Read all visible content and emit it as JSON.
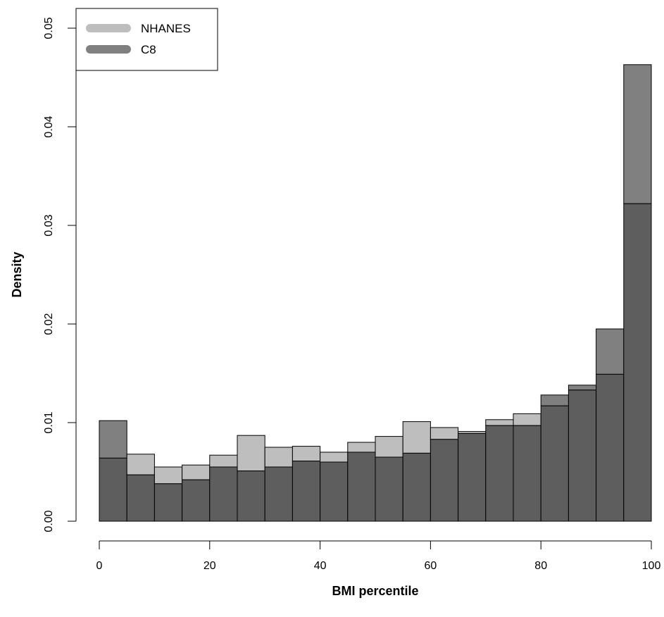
{
  "chart_data": {
    "type": "bar",
    "title": "",
    "xlabel": "BMI percentile",
    "ylabel": "Density",
    "xlim": [
      0,
      100
    ],
    "ylim": [
      0,
      0.05
    ],
    "x_ticks": [
      "0",
      "20",
      "40",
      "60",
      "80",
      "100"
    ],
    "y_ticks": [
      "0.00",
      "0.01",
      "0.02",
      "0.03",
      "0.04",
      "0.05"
    ],
    "bin_edges": [
      0,
      5,
      10,
      15,
      20,
      25,
      30,
      35,
      40,
      45,
      50,
      55,
      60,
      65,
      70,
      75,
      80,
      85,
      90,
      95,
      100
    ],
    "series": [
      {
        "name": "NHANES",
        "color": "#bebebe",
        "values": [
          0.0064,
          0.0068,
          0.0055,
          0.0057,
          0.0067,
          0.0087,
          0.0075,
          0.0076,
          0.007,
          0.008,
          0.0086,
          0.0101,
          0.0095,
          0.0091,
          0.0103,
          0.0109,
          0.0117,
          0.0133,
          0.0149,
          0.0322
        ]
      },
      {
        "name": "C8",
        "color": "#808080",
        "values": [
          0.0102,
          0.0047,
          0.0038,
          0.0042,
          0.0055,
          0.0051,
          0.0055,
          0.0061,
          0.006,
          0.007,
          0.0065,
          0.0069,
          0.0083,
          0.0089,
          0.0097,
          0.0097,
          0.0128,
          0.0138,
          0.0195,
          0.0463
        ]
      }
    ],
    "overlap_color": "#5e5e5e",
    "legend": {
      "position": "top-left"
    },
    "grid": false
  }
}
